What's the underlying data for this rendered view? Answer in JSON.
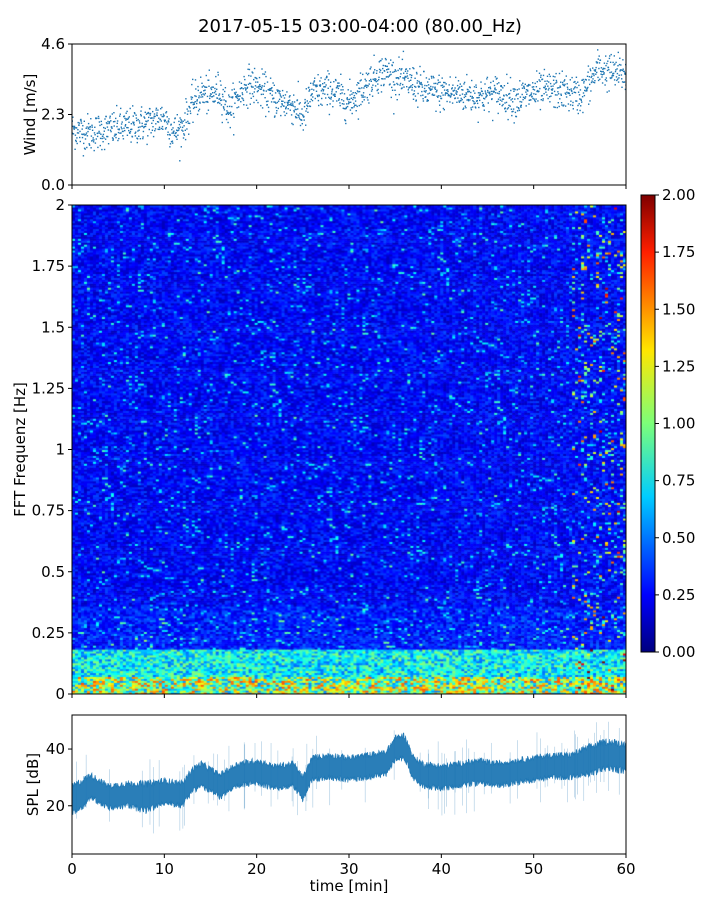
{
  "title": "2017-05-15 03:00-04:00 (80.00_Hz)",
  "chart_data": [
    {
      "type": "scatter",
      "panel": "wind",
      "ylabel": "Wind [m/s]",
      "xlim": [
        0,
        60
      ],
      "ylim": [
        0,
        4.6
      ],
      "yticks": [
        0,
        2.3,
        4.6
      ],
      "ytick_labels": [
        "0.0",
        "2.3",
        "4.6"
      ],
      "xticks": [
        0,
        10,
        20,
        30,
        40,
        50,
        60
      ],
      "color": "#1f77b4",
      "trend": {
        "x": [
          0,
          2,
          4,
          6,
          8,
          10,
          11,
          12,
          13,
          14,
          15,
          16,
          17,
          18,
          19,
          20,
          22,
          24,
          25,
          26,
          28,
          30,
          31,
          32,
          33,
          34,
          35,
          36,
          37,
          38,
          40,
          42,
          44,
          46,
          48,
          50,
          52,
          54,
          55,
          56,
          57,
          58,
          60
        ],
        "y": [
          1.8,
          1.7,
          1.8,
          1.9,
          2.0,
          2.2,
          1.7,
          1.9,
          2.6,
          3.0,
          2.9,
          3.1,
          2.4,
          2.9,
          3.3,
          3.2,
          2.8,
          2.6,
          2.2,
          3.0,
          3.1,
          2.7,
          3.0,
          3.3,
          3.6,
          3.7,
          3.5,
          3.4,
          3.3,
          3.1,
          3.0,
          3.0,
          2.9,
          3.0,
          2.8,
          3.0,
          3.1,
          3.0,
          2.9,
          3.3,
          3.8,
          3.7,
          3.6
        ]
      }
    },
    {
      "type": "heatmap",
      "panel": "spectrogram",
      "ylabel": "FFT Frequenz [Hz]",
      "xlim": [
        0,
        60
      ],
      "ylim": [
        0,
        2
      ],
      "yticks": [
        0,
        0.25,
        0.5,
        0.75,
        1,
        1.25,
        1.5,
        1.75,
        2
      ],
      "ytick_labels": [
        "0",
        "0.25",
        "0.5",
        "0.75",
        "1",
        "1.25",
        "1.5",
        "1.75",
        "2"
      ],
      "colormap": "jet",
      "colorbar": {
        "range": [
          0,
          2
        ],
        "ticks": [
          0,
          0.25,
          0.5,
          0.75,
          1,
          1.25,
          1.5,
          1.75,
          2
        ],
        "tick_labels": [
          "0.00",
          "0.25",
          "0.50",
          "0.75",
          "1.00",
          "1.25",
          "1.50",
          "1.75",
          "2.00"
        ]
      },
      "typical_value": 0.25,
      "low_frequency_band_value": 1.0
    },
    {
      "type": "area",
      "panel": "spl",
      "ylabel": "SPL [dB]",
      "xlabel": "time [min]",
      "xlim": [
        0,
        60
      ],
      "ylim": [
        3,
        52
      ],
      "yticks": [
        20,
        40
      ],
      "ytick_labels": [
        "20",
        "40"
      ],
      "xticks": [
        0,
        10,
        20,
        30,
        40,
        50,
        60
      ],
      "xtick_labels": [
        "0",
        "10",
        "20",
        "30",
        "40",
        "50",
        "60"
      ],
      "color": "#1f77b4",
      "trend": {
        "x": [
          0,
          1,
          2,
          4,
          6,
          8,
          10,
          12,
          13,
          14,
          15,
          16,
          18,
          20,
          22,
          24,
          25,
          26,
          28,
          30,
          32,
          34,
          35,
          36,
          37,
          38,
          40,
          42,
          44,
          46,
          48,
          50,
          52,
          54,
          56,
          58,
          60
        ],
        "mean": [
          22,
          24,
          27,
          23,
          24,
          23,
          25,
          24,
          29,
          31,
          29,
          27,
          31,
          32,
          30,
          31,
          26,
          33,
          34,
          33,
          34,
          35,
          40,
          41,
          33,
          31,
          30,
          31,
          32,
          31,
          32,
          33,
          34,
          34,
          36,
          38,
          37
        ],
        "spread": [
          6,
          6,
          5,
          5,
          5,
          6,
          5,
          5,
          5,
          5,
          5,
          5,
          5,
          5,
          5,
          5,
          5,
          5,
          5,
          5,
          5,
          5,
          5,
          5,
          5,
          5,
          5,
          5,
          5,
          5,
          5,
          5,
          5,
          5,
          6,
          6,
          6
        ]
      }
    }
  ]
}
